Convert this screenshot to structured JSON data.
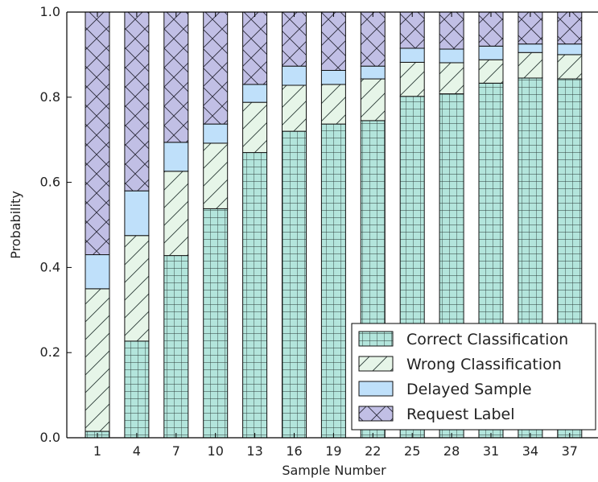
{
  "chart_data": {
    "type": "bar",
    "stacked": true,
    "xlabel": "Sample Number",
    "ylabel": "Probability",
    "ylim": [
      0.0,
      1.0
    ],
    "yticks": [
      "0.0",
      "0.2",
      "0.4",
      "0.6",
      "0.8",
      "1.0"
    ],
    "categories": [
      "1",
      "4",
      "7",
      "10",
      "13",
      "16",
      "19",
      "22",
      "25",
      "28",
      "31",
      "34",
      "37"
    ],
    "series": [
      {
        "name": "Correct Classification",
        "color": "#b3e5dc",
        "pattern": "grid",
        "values": [
          0.015,
          0.227,
          0.428,
          0.538,
          0.67,
          0.72,
          0.737,
          0.745,
          0.802,
          0.808,
          0.833,
          0.845,
          0.843
        ]
      },
      {
        "name": "Wrong Classification",
        "color": "#e6f5e8",
        "pattern": "diagonal",
        "values": [
          0.335,
          0.248,
          0.198,
          0.154,
          0.118,
          0.108,
          0.093,
          0.098,
          0.08,
          0.073,
          0.055,
          0.06,
          0.057
        ]
      },
      {
        "name": "Delayed Sample",
        "color": "#bfe0fa",
        "pattern": "solid",
        "values": [
          0.08,
          0.105,
          0.068,
          0.045,
          0.042,
          0.045,
          0.033,
          0.03,
          0.033,
          0.032,
          0.032,
          0.02,
          0.025
        ]
      },
      {
        "name": "Request Label",
        "color": "#c1bfe5",
        "pattern": "crosshatch",
        "values": [
          0.57,
          0.42,
          0.306,
          0.263,
          0.17,
          0.127,
          0.137,
          0.127,
          0.085,
          0.087,
          0.08,
          0.075,
          0.075
        ]
      }
    ],
    "legend_position": "lower-right",
    "grid": false
  }
}
